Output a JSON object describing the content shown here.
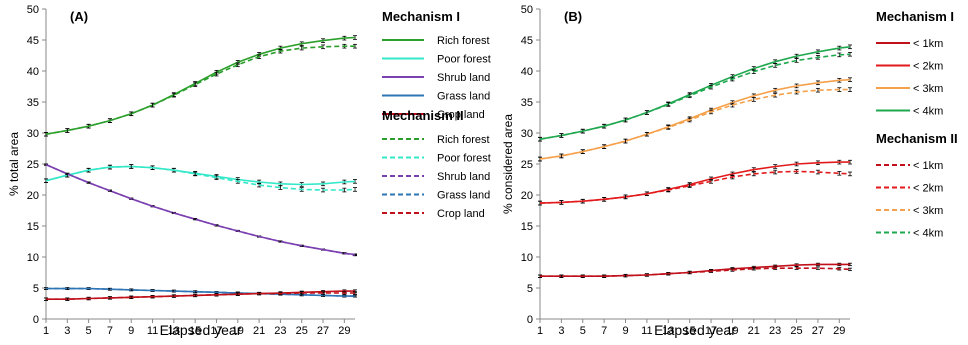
{
  "chart_data": [
    {
      "type": "line",
      "panel_label": "(A)",
      "xlabel": "Elapsed year",
      "ylabel": "% total area",
      "xlim": [
        1,
        30
      ],
      "ylim": [
        0,
        50
      ],
      "x_ticks": [
        1,
        3,
        5,
        7,
        9,
        11,
        13,
        15,
        17,
        19,
        21,
        23,
        25,
        27,
        29
      ],
      "y_ticks": [
        0,
        5,
        10,
        15,
        20,
        25,
        30,
        35,
        40,
        45,
        50
      ],
      "grid": false,
      "error_bars": true,
      "legend_position": "right",
      "legend_groups": [
        {
          "title": "Mechanism I",
          "style": "solid",
          "entries": [
            {
              "label": "Rich forest",
              "color": "#2ca02c"
            },
            {
              "label": "Poor forest",
              "color": "#33e8c9"
            },
            {
              "label": "Shrub land",
              "color": "#7a3fb0"
            },
            {
              "label": "Grass land",
              "color": "#2e75b6"
            },
            {
              "label": "Crop land",
              "color": "#c0101a"
            }
          ]
        },
        {
          "title": "Mechanism II",
          "style": "dashed",
          "entries": [
            {
              "label": "Rich forest",
              "color": "#2ca02c"
            },
            {
              "label": "Poor forest",
              "color": "#33e8c9"
            },
            {
              "label": "Shrub land",
              "color": "#7a3fb0"
            },
            {
              "label": "Grass land",
              "color": "#2e75b6"
            },
            {
              "label": "Crop land",
              "color": "#c0101a"
            }
          ]
        }
      ],
      "x": [
        1,
        3,
        5,
        7,
        9,
        11,
        13,
        15,
        17,
        19,
        21,
        23,
        25,
        27,
        29,
        30
      ],
      "series": [
        {
          "name": "Rich forest",
          "group": "Mechanism I",
          "color": "#2ca02c",
          "dash": false,
          "values": [
            29.8,
            30.4,
            31.1,
            32.0,
            33.1,
            34.5,
            36.2,
            38.0,
            39.8,
            41.4,
            42.7,
            43.7,
            44.4,
            44.9,
            45.3,
            45.4
          ],
          "err": 0.3
        },
        {
          "name": "Rich forest",
          "group": "Mechanism II",
          "color": "#2ca02c",
          "dash": true,
          "values": [
            29.8,
            30.4,
            31.1,
            32.0,
            33.1,
            34.5,
            36.1,
            37.8,
            39.5,
            41.0,
            42.3,
            43.2,
            43.7,
            43.9,
            44.0,
            44.0
          ],
          "err": 0.3
        },
        {
          "name": "Poor forest",
          "group": "Mechanism I",
          "color": "#33e8c9",
          "dash": false,
          "values": [
            22.3,
            23.2,
            24.0,
            24.5,
            24.6,
            24.4,
            24.0,
            23.5,
            23.0,
            22.5,
            22.1,
            21.8,
            21.7,
            21.8,
            22.1,
            22.2
          ],
          "err": 0.3
        },
        {
          "name": "Poor forest",
          "group": "Mechanism II",
          "color": "#33e8c9",
          "dash": true,
          "values": [
            22.3,
            23.2,
            24.0,
            24.5,
            24.6,
            24.4,
            24.0,
            23.4,
            22.8,
            22.2,
            21.6,
            21.2,
            20.9,
            20.8,
            20.8,
            20.9
          ],
          "err": 0.3
        },
        {
          "name": "Shrub land",
          "group": "Mechanism I",
          "color": "#7a3fb0",
          "dash": false,
          "values": [
            24.9,
            23.4,
            22.0,
            20.7,
            19.4,
            18.2,
            17.1,
            16.1,
            15.1,
            14.2,
            13.3,
            12.5,
            11.8,
            11.2,
            10.6,
            10.4
          ],
          "err": 0.1
        },
        {
          "name": "Shrub land",
          "group": "Mechanism II",
          "color": "#7a3fb0",
          "dash": true,
          "values": [
            24.9,
            23.4,
            22.0,
            20.7,
            19.4,
            18.2,
            17.1,
            16.1,
            15.1,
            14.2,
            13.3,
            12.5,
            11.8,
            11.2,
            10.6,
            10.3
          ],
          "err": 0.1
        },
        {
          "name": "Grass land",
          "group": "Mechanism I",
          "color": "#2e75b6",
          "dash": false,
          "values": [
            4.9,
            4.9,
            4.9,
            4.8,
            4.7,
            4.6,
            4.5,
            4.4,
            4.3,
            4.2,
            4.1,
            4.0,
            3.9,
            3.8,
            3.7,
            3.7
          ],
          "err": 0.15
        },
        {
          "name": "Grass land",
          "group": "Mechanism II",
          "color": "#2e75b6",
          "dash": true,
          "values": [
            4.9,
            4.9,
            4.9,
            4.8,
            4.7,
            4.6,
            4.5,
            4.4,
            4.3,
            4.2,
            4.1,
            4.0,
            3.9,
            3.8,
            3.7,
            3.7
          ],
          "err": 0.15
        },
        {
          "name": "Crop land",
          "group": "Mechanism I",
          "color": "#c0101a",
          "dash": false,
          "values": [
            3.2,
            3.2,
            3.3,
            3.4,
            3.5,
            3.6,
            3.7,
            3.8,
            3.9,
            4.0,
            4.1,
            4.2,
            4.3,
            4.4,
            4.5,
            4.5
          ],
          "err": 0.2
        },
        {
          "name": "Crop land",
          "group": "Mechanism II",
          "color": "#c0101a",
          "dash": true,
          "values": [
            3.2,
            3.2,
            3.3,
            3.4,
            3.5,
            3.6,
            3.7,
            3.8,
            3.9,
            4.0,
            4.1,
            4.1,
            4.2,
            4.2,
            4.2,
            4.2
          ],
          "err": 0.2
        }
      ]
    },
    {
      "type": "line",
      "panel_label": "(B)",
      "xlabel": "Elapsed year",
      "ylabel": "% considered area",
      "xlim": [
        1,
        30
      ],
      "ylim": [
        0,
        50
      ],
      "x_ticks": [
        1,
        3,
        5,
        7,
        9,
        11,
        13,
        15,
        17,
        19,
        21,
        23,
        25,
        27,
        29
      ],
      "y_ticks": [
        0,
        5,
        10,
        15,
        20,
        25,
        30,
        35,
        40,
        45,
        50
      ],
      "grid": false,
      "error_bars": true,
      "legend_position": "right",
      "legend_groups": [
        {
          "title": "Mechanism I",
          "style": "solid",
          "entries": [
            {
              "label": "< 1km",
              "color": "#c0101a"
            },
            {
              "label": "< 2km",
              "color": "#e31a1c"
            },
            {
              "label": "< 3km",
              "color": "#f5a04a"
            },
            {
              "label": "< 4km",
              "color": "#1fa84f"
            }
          ]
        },
        {
          "title": "Mechanism II",
          "style": "dashed",
          "entries": [
            {
              "label": "< 1km",
              "color": "#c0101a"
            },
            {
              "label": "< 2km",
              "color": "#e31a1c"
            },
            {
              "label": "< 3km",
              "color": "#f5a04a"
            },
            {
              "label": "< 4km",
              "color": "#1fa84f"
            }
          ]
        }
      ],
      "x": [
        1,
        3,
        5,
        7,
        9,
        11,
        13,
        15,
        17,
        19,
        21,
        23,
        25,
        27,
        29,
        30
      ],
      "series": [
        {
          "name": "< 4km",
          "group": "Mechanism I",
          "color": "#1fa84f",
          "dash": false,
          "values": [
            29.0,
            29.6,
            30.3,
            31.1,
            32.1,
            33.3,
            34.7,
            36.2,
            37.7,
            39.1,
            40.4,
            41.5,
            42.4,
            43.1,
            43.7,
            43.9
          ],
          "err": 0.3
        },
        {
          "name": "< 4km",
          "group": "Mechanism II",
          "color": "#1fa84f",
          "dash": true,
          "values": [
            29.0,
            29.6,
            30.3,
            31.1,
            32.1,
            33.3,
            34.6,
            36.0,
            37.4,
            38.7,
            39.9,
            40.9,
            41.7,
            42.2,
            42.6,
            42.7
          ],
          "err": 0.3
        },
        {
          "name": "< 3km",
          "group": "Mechanism I",
          "color": "#f5a04a",
          "dash": false,
          "values": [
            25.8,
            26.3,
            27.0,
            27.8,
            28.7,
            29.8,
            31.0,
            32.3,
            33.7,
            34.9,
            36.0,
            36.9,
            37.6,
            38.1,
            38.5,
            38.6
          ],
          "err": 0.3
        },
        {
          "name": "< 3km",
          "group": "Mechanism II",
          "color": "#f5a04a",
          "dash": true,
          "values": [
            25.8,
            26.3,
            27.0,
            27.8,
            28.7,
            29.8,
            30.9,
            32.1,
            33.4,
            34.5,
            35.4,
            36.1,
            36.6,
            36.9,
            37.0,
            37.0
          ],
          "err": 0.3
        },
        {
          "name": "< 2km",
          "group": "Mechanism I",
          "color": "#e31a1c",
          "dash": false,
          "values": [
            18.7,
            18.8,
            19.0,
            19.3,
            19.7,
            20.2,
            20.9,
            21.7,
            22.6,
            23.4,
            24.1,
            24.6,
            25.0,
            25.2,
            25.3,
            25.3
          ],
          "err": 0.3
        },
        {
          "name": "< 2km",
          "group": "Mechanism II",
          "color": "#e31a1c",
          "dash": true,
          "values": [
            18.7,
            18.8,
            19.0,
            19.3,
            19.7,
            20.2,
            20.8,
            21.5,
            22.2,
            22.9,
            23.4,
            23.7,
            23.8,
            23.7,
            23.5,
            23.4
          ],
          "err": 0.3
        },
        {
          "name": "< 1km",
          "group": "Mechanism I",
          "color": "#c0101a",
          "dash": false,
          "values": [
            6.9,
            6.9,
            6.9,
            6.9,
            7.0,
            7.1,
            7.3,
            7.5,
            7.8,
            8.1,
            8.3,
            8.5,
            8.7,
            8.8,
            8.8,
            8.8
          ],
          "err": 0.2
        },
        {
          "name": "< 1km",
          "group": "Mechanism II",
          "color": "#c0101a",
          "dash": true,
          "values": [
            6.9,
            6.9,
            6.9,
            6.9,
            7.0,
            7.1,
            7.3,
            7.5,
            7.7,
            7.9,
            8.1,
            8.2,
            8.2,
            8.2,
            8.1,
            8.0
          ],
          "err": 0.2
        }
      ]
    }
  ]
}
